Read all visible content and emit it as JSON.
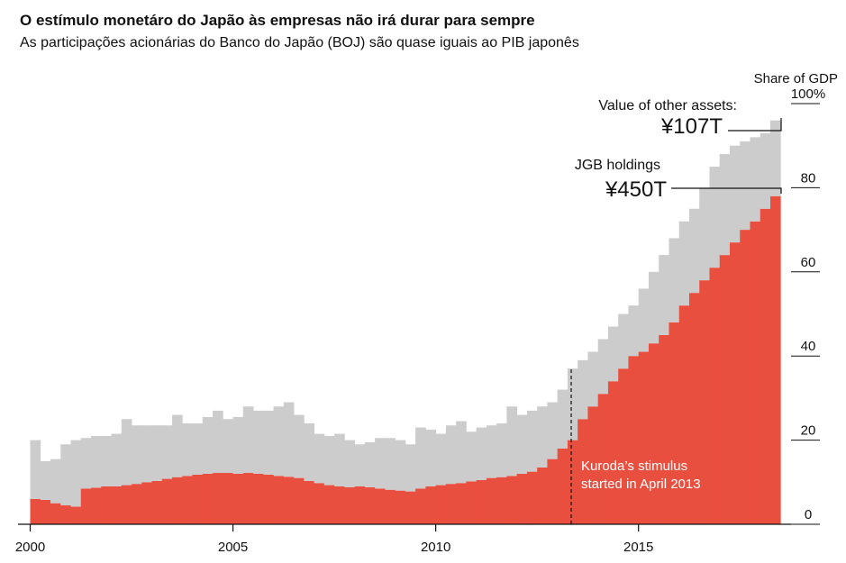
{
  "chart_data": {
    "type": "stacked-step-area",
    "title": "O estímulo monetáro do Japão às empresas não irá durar para sempre",
    "subtitle": "As participações acionárias do Banco do Japão (BOJ) são quase iguais ao PIB japonês",
    "y_axis_label": "Share of GDP",
    "x": [
      2000,
      2000.25,
      2000.5,
      2000.75,
      2001,
      2001.25,
      2001.5,
      2001.75,
      2002,
      2002.25,
      2002.5,
      2002.75,
      2003,
      2003.25,
      2003.5,
      2003.75,
      2004,
      2004.25,
      2004.5,
      2004.75,
      2005,
      2005.25,
      2005.5,
      2005.75,
      2006,
      2006.25,
      2006.5,
      2006.75,
      2007,
      2007.25,
      2007.5,
      2007.75,
      2008,
      2008.25,
      2008.5,
      2008.75,
      2009,
      2009.25,
      2009.5,
      2009.75,
      2010,
      2010.25,
      2010.5,
      2010.75,
      2011,
      2011.25,
      2011.5,
      2011.75,
      2012,
      2012.25,
      2012.5,
      2012.75,
      2013,
      2013.25,
      2013.5,
      2013.75,
      2014,
      2014.25,
      2014.5,
      2014.75,
      2015,
      2015.25,
      2015.5,
      2015.75,
      2016,
      2016.25,
      2016.5,
      2016.75,
      2017,
      2017.25,
      2017.5,
      2017.75,
      2018,
      2018.25
    ],
    "series": [
      {
        "name": "JGB holdings",
        "color": "#e94f3f",
        "values": [
          6,
          5.8,
          5,
          4.5,
          4.2,
          8.5,
          8.7,
          9,
          9,
          9.3,
          9.6,
          10,
          10.3,
          10.8,
          11.2,
          11.5,
          11.8,
          12,
          12.2,
          12.2,
          12,
          12.2,
          12,
          11.8,
          11.5,
          11.3,
          11,
          10.3,
          9.8,
          9.3,
          9,
          8.8,
          9,
          8.8,
          8.5,
          8.2,
          8,
          7.8,
          8.5,
          9,
          9.3,
          9.6,
          9.8,
          10.2,
          10.5,
          11,
          11.2,
          11.5,
          12,
          12.5,
          13.5,
          15.5,
          18,
          20,
          25,
          28,
          31,
          34,
          37,
          40,
          41,
          43,
          45,
          48,
          52,
          55,
          58,
          61,
          64,
          67,
          70,
          72,
          75,
          78
        ]
      },
      {
        "name": "Value of other assets:",
        "color": "#cccccc",
        "values": [
          14,
          9.2,
          10.5,
          14.5,
          15.8,
          12,
          12.3,
          12,
          12.5,
          15.7,
          13.9,
          13.5,
          13.2,
          12.7,
          14.8,
          12.5,
          12.2,
          13.5,
          14.8,
          12.8,
          13.5,
          15.8,
          15,
          15.2,
          16.5,
          17.7,
          15,
          13.7,
          11.7,
          11.7,
          12.5,
          11.2,
          10,
          10.7,
          12,
          12.3,
          12,
          11.2,
          14.5,
          13.5,
          12.2,
          13.9,
          14.7,
          11.8,
          12.5,
          12.5,
          12.8,
          16.5,
          14,
          14.5,
          14.5,
          13.5,
          14,
          17,
          14,
          13,
          13,
          13,
          13,
          12,
          15,
          17,
          19,
          20,
          20,
          20,
          22,
          24,
          24,
          23,
          21,
          20,
          18,
          18
        ]
      }
    ],
    "step": 0.25,
    "annotations": {
      "jgb_value": "¥450T",
      "other_value": "¥107T",
      "kuroda": [
        "Kuroda’s stimulus",
        "started in April 2013"
      ]
    },
    "xlim": [
      1999.7,
      2018.85
    ],
    "xticks": [
      2000,
      2005,
      2010,
      2015
    ],
    "ylim": [
      0,
      100
    ],
    "yticks": [
      0,
      20,
      40,
      60,
      80,
      {
        "value": 100,
        "label": "100%"
      }
    ],
    "y_axis_side": "right"
  }
}
